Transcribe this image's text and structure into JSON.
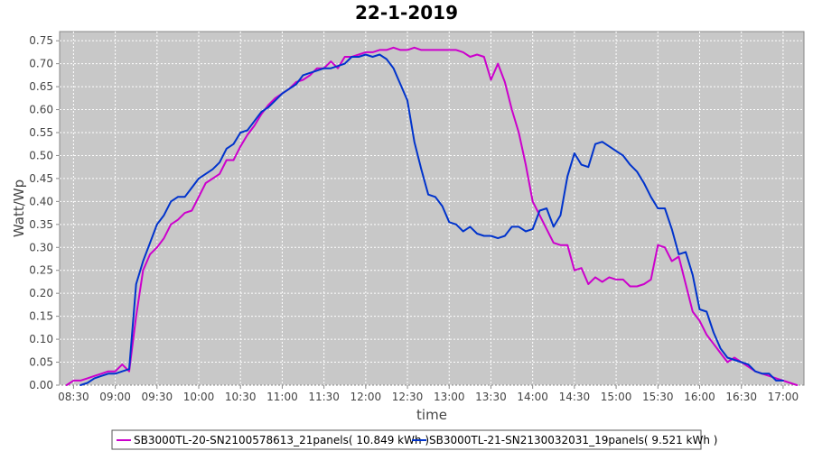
{
  "chart_data": {
    "type": "line",
    "title": "22-1-2019",
    "xlabel": "time",
    "ylabel": "Watt/Wp",
    "xlim": [
      "08:20",
      "17:15"
    ],
    "ylim": [
      0,
      0.77
    ],
    "grid": true,
    "legend_position": "bottom",
    "x_ticks": [
      "08:30",
      "09:00",
      "09:30",
      "10:00",
      "10:30",
      "11:00",
      "11:30",
      "12:00",
      "12:30",
      "13:00",
      "13:30",
      "14:00",
      "14:30",
      "15:00",
      "15:30",
      "16:00",
      "16:30",
      "17:00"
    ],
    "y_ticks": [
      "0.00",
      "0.05",
      "0.10",
      "0.15",
      "0.20",
      "0.25",
      "0.30",
      "0.35",
      "0.40",
      "0.45",
      "0.50",
      "0.55",
      "0.60",
      "0.65",
      "0.70",
      "0.75"
    ],
    "series": [
      {
        "name": "SB3000TL-20-SN2100578613_21panels( 10.849 kWh )",
        "color": "#cc00cc",
        "x": [
          "08:25",
          "08:30",
          "08:35",
          "08:40",
          "08:45",
          "08:50",
          "08:55",
          "09:00",
          "09:05",
          "09:10",
          "09:15",
          "09:20",
          "09:25",
          "09:30",
          "09:35",
          "09:40",
          "09:45",
          "09:50",
          "09:55",
          "10:00",
          "10:05",
          "10:10",
          "10:15",
          "10:20",
          "10:25",
          "10:30",
          "10:35",
          "10:40",
          "10:45",
          "10:50",
          "10:55",
          "11:00",
          "11:05",
          "11:10",
          "11:15",
          "11:20",
          "11:25",
          "11:30",
          "11:35",
          "11:40",
          "11:45",
          "11:50",
          "11:55",
          "12:00",
          "12:05",
          "12:10",
          "12:15",
          "12:20",
          "12:25",
          "12:30",
          "12:35",
          "12:40",
          "12:45",
          "12:50",
          "12:55",
          "13:00",
          "13:05",
          "13:10",
          "13:15",
          "13:20",
          "13:25",
          "13:30",
          "13:35",
          "13:40",
          "13:45",
          "13:50",
          "13:55",
          "14:00",
          "14:05",
          "14:10",
          "14:15",
          "14:20",
          "14:25",
          "14:30",
          "14:35",
          "14:40",
          "14:45",
          "14:50",
          "14:55",
          "15:00",
          "15:05",
          "15:10",
          "15:15",
          "15:20",
          "15:25",
          "15:30",
          "15:35",
          "15:40",
          "15:45",
          "15:50",
          "15:55",
          "16:00",
          "16:05",
          "16:10",
          "16:15",
          "16:20",
          "16:25",
          "16:30",
          "16:35",
          "16:40",
          "16:45",
          "16:50",
          "16:55",
          "17:00",
          "17:05",
          "17:10"
        ],
        "values": [
          0.0,
          0.01,
          0.01,
          0.015,
          0.02,
          0.025,
          0.03,
          0.03,
          0.045,
          0.03,
          0.15,
          0.25,
          0.285,
          0.3,
          0.32,
          0.35,
          0.36,
          0.375,
          0.38,
          0.41,
          0.44,
          0.45,
          0.46,
          0.49,
          0.49,
          0.52,
          0.545,
          0.565,
          0.59,
          0.61,
          0.625,
          0.635,
          0.645,
          0.66,
          0.665,
          0.675,
          0.69,
          0.69,
          0.705,
          0.69,
          0.715,
          0.715,
          0.72,
          0.725,
          0.725,
          0.73,
          0.73,
          0.735,
          0.73,
          0.73,
          0.735,
          0.73,
          0.73,
          0.73,
          0.73,
          0.73,
          0.73,
          0.725,
          0.715,
          0.72,
          0.715,
          0.665,
          0.7,
          0.66,
          0.6,
          0.55,
          0.48,
          0.4,
          0.37,
          0.34,
          0.31,
          0.305,
          0.305,
          0.25,
          0.255,
          0.22,
          0.235,
          0.225,
          0.235,
          0.23,
          0.23,
          0.215,
          0.215,
          0.22,
          0.23,
          0.305,
          0.3,
          0.27,
          0.28,
          0.22,
          0.16,
          0.14,
          0.11,
          0.09,
          0.07,
          0.05,
          0.06,
          0.05,
          0.04,
          0.03,
          0.025,
          0.02,
          0.015,
          0.01,
          0.005,
          0.0
        ]
      },
      {
        "name": "SB3000TL-21-SN2130032031_19panels( 9.521 kWh )",
        "color": "#0033cc",
        "x": [
          "08:35",
          "08:40",
          "08:45",
          "08:50",
          "08:55",
          "09:00",
          "09:05",
          "09:10",
          "09:15",
          "09:20",
          "09:25",
          "09:30",
          "09:35",
          "09:40",
          "09:45",
          "09:50",
          "09:55",
          "10:00",
          "10:05",
          "10:10",
          "10:15",
          "10:20",
          "10:25",
          "10:30",
          "10:35",
          "10:40",
          "10:45",
          "10:50",
          "10:55",
          "11:00",
          "11:05",
          "11:10",
          "11:15",
          "11:20",
          "11:25",
          "11:30",
          "11:35",
          "11:40",
          "11:45",
          "11:50",
          "11:55",
          "12:00",
          "12:05",
          "12:10",
          "12:15",
          "12:20",
          "12:25",
          "12:30",
          "12:35",
          "12:40",
          "12:45",
          "12:50",
          "12:55",
          "13:00",
          "13:05",
          "13:10",
          "13:15",
          "13:20",
          "13:25",
          "13:30",
          "13:35",
          "13:40",
          "13:45",
          "13:50",
          "13:55",
          "14:00",
          "14:05",
          "14:10",
          "14:15",
          "14:20",
          "14:25",
          "14:30",
          "14:35",
          "14:40",
          "14:45",
          "14:50",
          "14:55",
          "15:00",
          "15:05",
          "15:10",
          "15:15",
          "15:20",
          "15:25",
          "15:30",
          "15:35",
          "15:40",
          "15:45",
          "15:50",
          "15:55",
          "16:00",
          "16:05",
          "16:10",
          "16:15",
          "16:20",
          "16:25",
          "16:30",
          "16:35",
          "16:40",
          "16:45",
          "16:50",
          "16:55",
          "17:00"
        ],
        "values": [
          0.0,
          0.005,
          0.015,
          0.02,
          0.025,
          0.025,
          0.03,
          0.035,
          0.22,
          0.27,
          0.31,
          0.35,
          0.37,
          0.4,
          0.41,
          0.41,
          0.43,
          0.45,
          0.46,
          0.47,
          0.485,
          0.515,
          0.525,
          0.55,
          0.555,
          0.575,
          0.595,
          0.605,
          0.62,
          0.635,
          0.645,
          0.655,
          0.675,
          0.68,
          0.685,
          0.69,
          0.69,
          0.695,
          0.7,
          0.715,
          0.715,
          0.72,
          0.715,
          0.72,
          0.71,
          0.69,
          0.655,
          0.62,
          0.53,
          0.47,
          0.415,
          0.41,
          0.39,
          0.355,
          0.35,
          0.335,
          0.345,
          0.33,
          0.325,
          0.325,
          0.32,
          0.325,
          0.345,
          0.345,
          0.335,
          0.34,
          0.38,
          0.385,
          0.345,
          0.37,
          0.455,
          0.505,
          0.48,
          0.475,
          0.525,
          0.53,
          0.52,
          0.51,
          0.5,
          0.48,
          0.465,
          0.44,
          0.41,
          0.385,
          0.385,
          0.34,
          0.285,
          0.29,
          0.24,
          0.165,
          0.16,
          0.115,
          0.08,
          0.06,
          0.055,
          0.05,
          0.045,
          0.03,
          0.025,
          0.025,
          0.01,
          0.01
        ]
      }
    ]
  }
}
